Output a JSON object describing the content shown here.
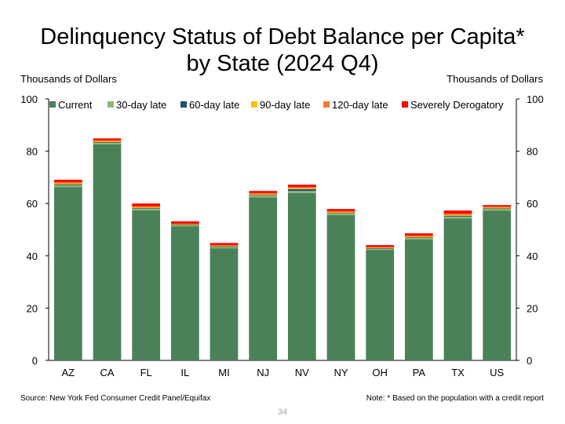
{
  "title_line1": "Delinquency Status of Debt Balance per Capita*",
  "title_line2": "by State (2024 Q4)",
  "left_unit": "Thousands of Dollars",
  "right_unit": "Thousands of Dollars",
  "source": "Source: New York Fed Consumer Credit Panel/Equifax",
  "note": "Note: * Based on the population with a credit report",
  "page_number": "34",
  "chart_data": {
    "type": "bar",
    "stacked": true,
    "categories": [
      "AZ",
      "CA",
      "FL",
      "IL",
      "MI",
      "NJ",
      "NV",
      "NY",
      "OH",
      "PA",
      "TX",
      "US"
    ],
    "ylim": [
      0,
      100
    ],
    "yticks": [
      "0",
      "20",
      "40",
      "60",
      "80",
      "100"
    ],
    "yticks_right": [
      "0",
      "20",
      "40",
      "60",
      "80",
      "100"
    ],
    "legend_position": "top",
    "grid": false,
    "series": [
      {
        "name": "Current",
        "color": "#4a8159",
        "values": [
          66.3,
          82.6,
          57.4,
          51.2,
          42.9,
          62.4,
          64.0,
          55.6,
          42.3,
          46.3,
          54.3,
          57.3
        ]
      },
      {
        "name": "30-day late",
        "color": "#8db777",
        "values": [
          0.7,
          0.6,
          0.6,
          0.4,
          0.5,
          0.6,
          0.8,
          0.5,
          0.4,
          0.5,
          0.7,
          0.6
        ]
      },
      {
        "name": "60-day late",
        "color": "#1f4e79",
        "values": [
          0.3,
          0.2,
          0.2,
          0.2,
          0.2,
          0.2,
          0.7,
          0.2,
          0.2,
          0.2,
          0.3,
          0.2
        ]
      },
      {
        "name": "90-day late",
        "color": "#ffc000",
        "values": [
          0.3,
          0.3,
          0.3,
          0.2,
          0.2,
          0.3,
          0.3,
          0.3,
          0.2,
          0.3,
          0.3,
          0.3
        ]
      },
      {
        "name": "120-day late",
        "color": "#ed7d31",
        "values": [
          0.6,
          0.5,
          0.5,
          0.3,
          0.3,
          0.5,
          0.5,
          0.5,
          0.3,
          0.4,
          0.5,
          0.4
        ]
      },
      {
        "name": "Severely Derogatory",
        "color": "#ff0000",
        "values": [
          0.9,
          0.7,
          1.0,
          0.9,
          0.8,
          0.8,
          0.9,
          0.8,
          0.7,
          0.9,
          1.2,
          0.6
        ]
      }
    ]
  }
}
